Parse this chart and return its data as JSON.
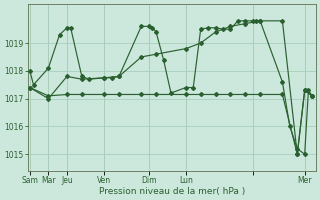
{
  "background_color": "#cce8dc",
  "grid_color": "#aacfbf",
  "line_color": "#2a6030",
  "xlabel": "Pression niveau de la mer( hPa )",
  "ylim": [
    1014.4,
    1020.4
  ],
  "yticks": [
    1015,
    1016,
    1017,
    1018,
    1019
  ],
  "xlim": [
    -0.3,
    38.5
  ],
  "x_tick_positions": [
    0,
    2.5,
    5,
    10,
    16,
    21,
    30,
    37
  ],
  "x_tick_labels": [
    "Sam",
    "Mar",
    "Jeu",
    "Ven",
    "Dim",
    "Lun",
    "",
    "Mer"
  ],
  "line1_x": [
    0,
    0.5,
    2.5,
    4,
    5,
    5.5,
    7,
    8,
    10,
    11,
    12,
    15,
    16,
    16.5,
    17,
    18,
    19,
    21,
    22,
    23,
    24,
    25,
    26,
    27,
    28,
    29,
    30,
    30.5,
    31,
    34,
    35,
    36,
    37,
    37.5,
    38
  ],
  "line1_y": [
    1018.0,
    1017.5,
    1018.1,
    1019.3,
    1019.55,
    1019.55,
    1017.8,
    1017.7,
    1017.75,
    1017.75,
    1017.8,
    1019.6,
    1019.6,
    1019.55,
    1019.4,
    1018.4,
    1017.2,
    1017.4,
    1017.4,
    1019.5,
    1019.55,
    1019.55,
    1019.5,
    1019.5,
    1019.8,
    1019.8,
    1019.8,
    1019.8,
    1019.8,
    1017.6,
    1016.0,
    1015.2,
    1015.0,
    1017.3,
    1017.1
  ],
  "line2_x": [
    0,
    2.5,
    5,
    7,
    10,
    12,
    15,
    17,
    21,
    23,
    25,
    27,
    29,
    31,
    34,
    36,
    37,
    38
  ],
  "line2_y": [
    1017.4,
    1017.1,
    1017.15,
    1017.15,
    1017.15,
    1017.15,
    1017.15,
    1017.15,
    1017.15,
    1017.15,
    1017.15,
    1017.15,
    1017.15,
    1017.15,
    1017.15,
    1015.0,
    1017.3,
    1017.1
  ],
  "line3_x": [
    0,
    2.5,
    5,
    7,
    10,
    12,
    15,
    17,
    21,
    23,
    25,
    27,
    29,
    31,
    34,
    36,
    37,
    38
  ],
  "line3_y": [
    1017.4,
    1017.0,
    1017.8,
    1017.7,
    1017.75,
    1017.8,
    1018.5,
    1018.6,
    1018.8,
    1019.0,
    1019.4,
    1019.6,
    1019.7,
    1019.8,
    1019.8,
    1015.0,
    1017.3,
    1017.1
  ]
}
